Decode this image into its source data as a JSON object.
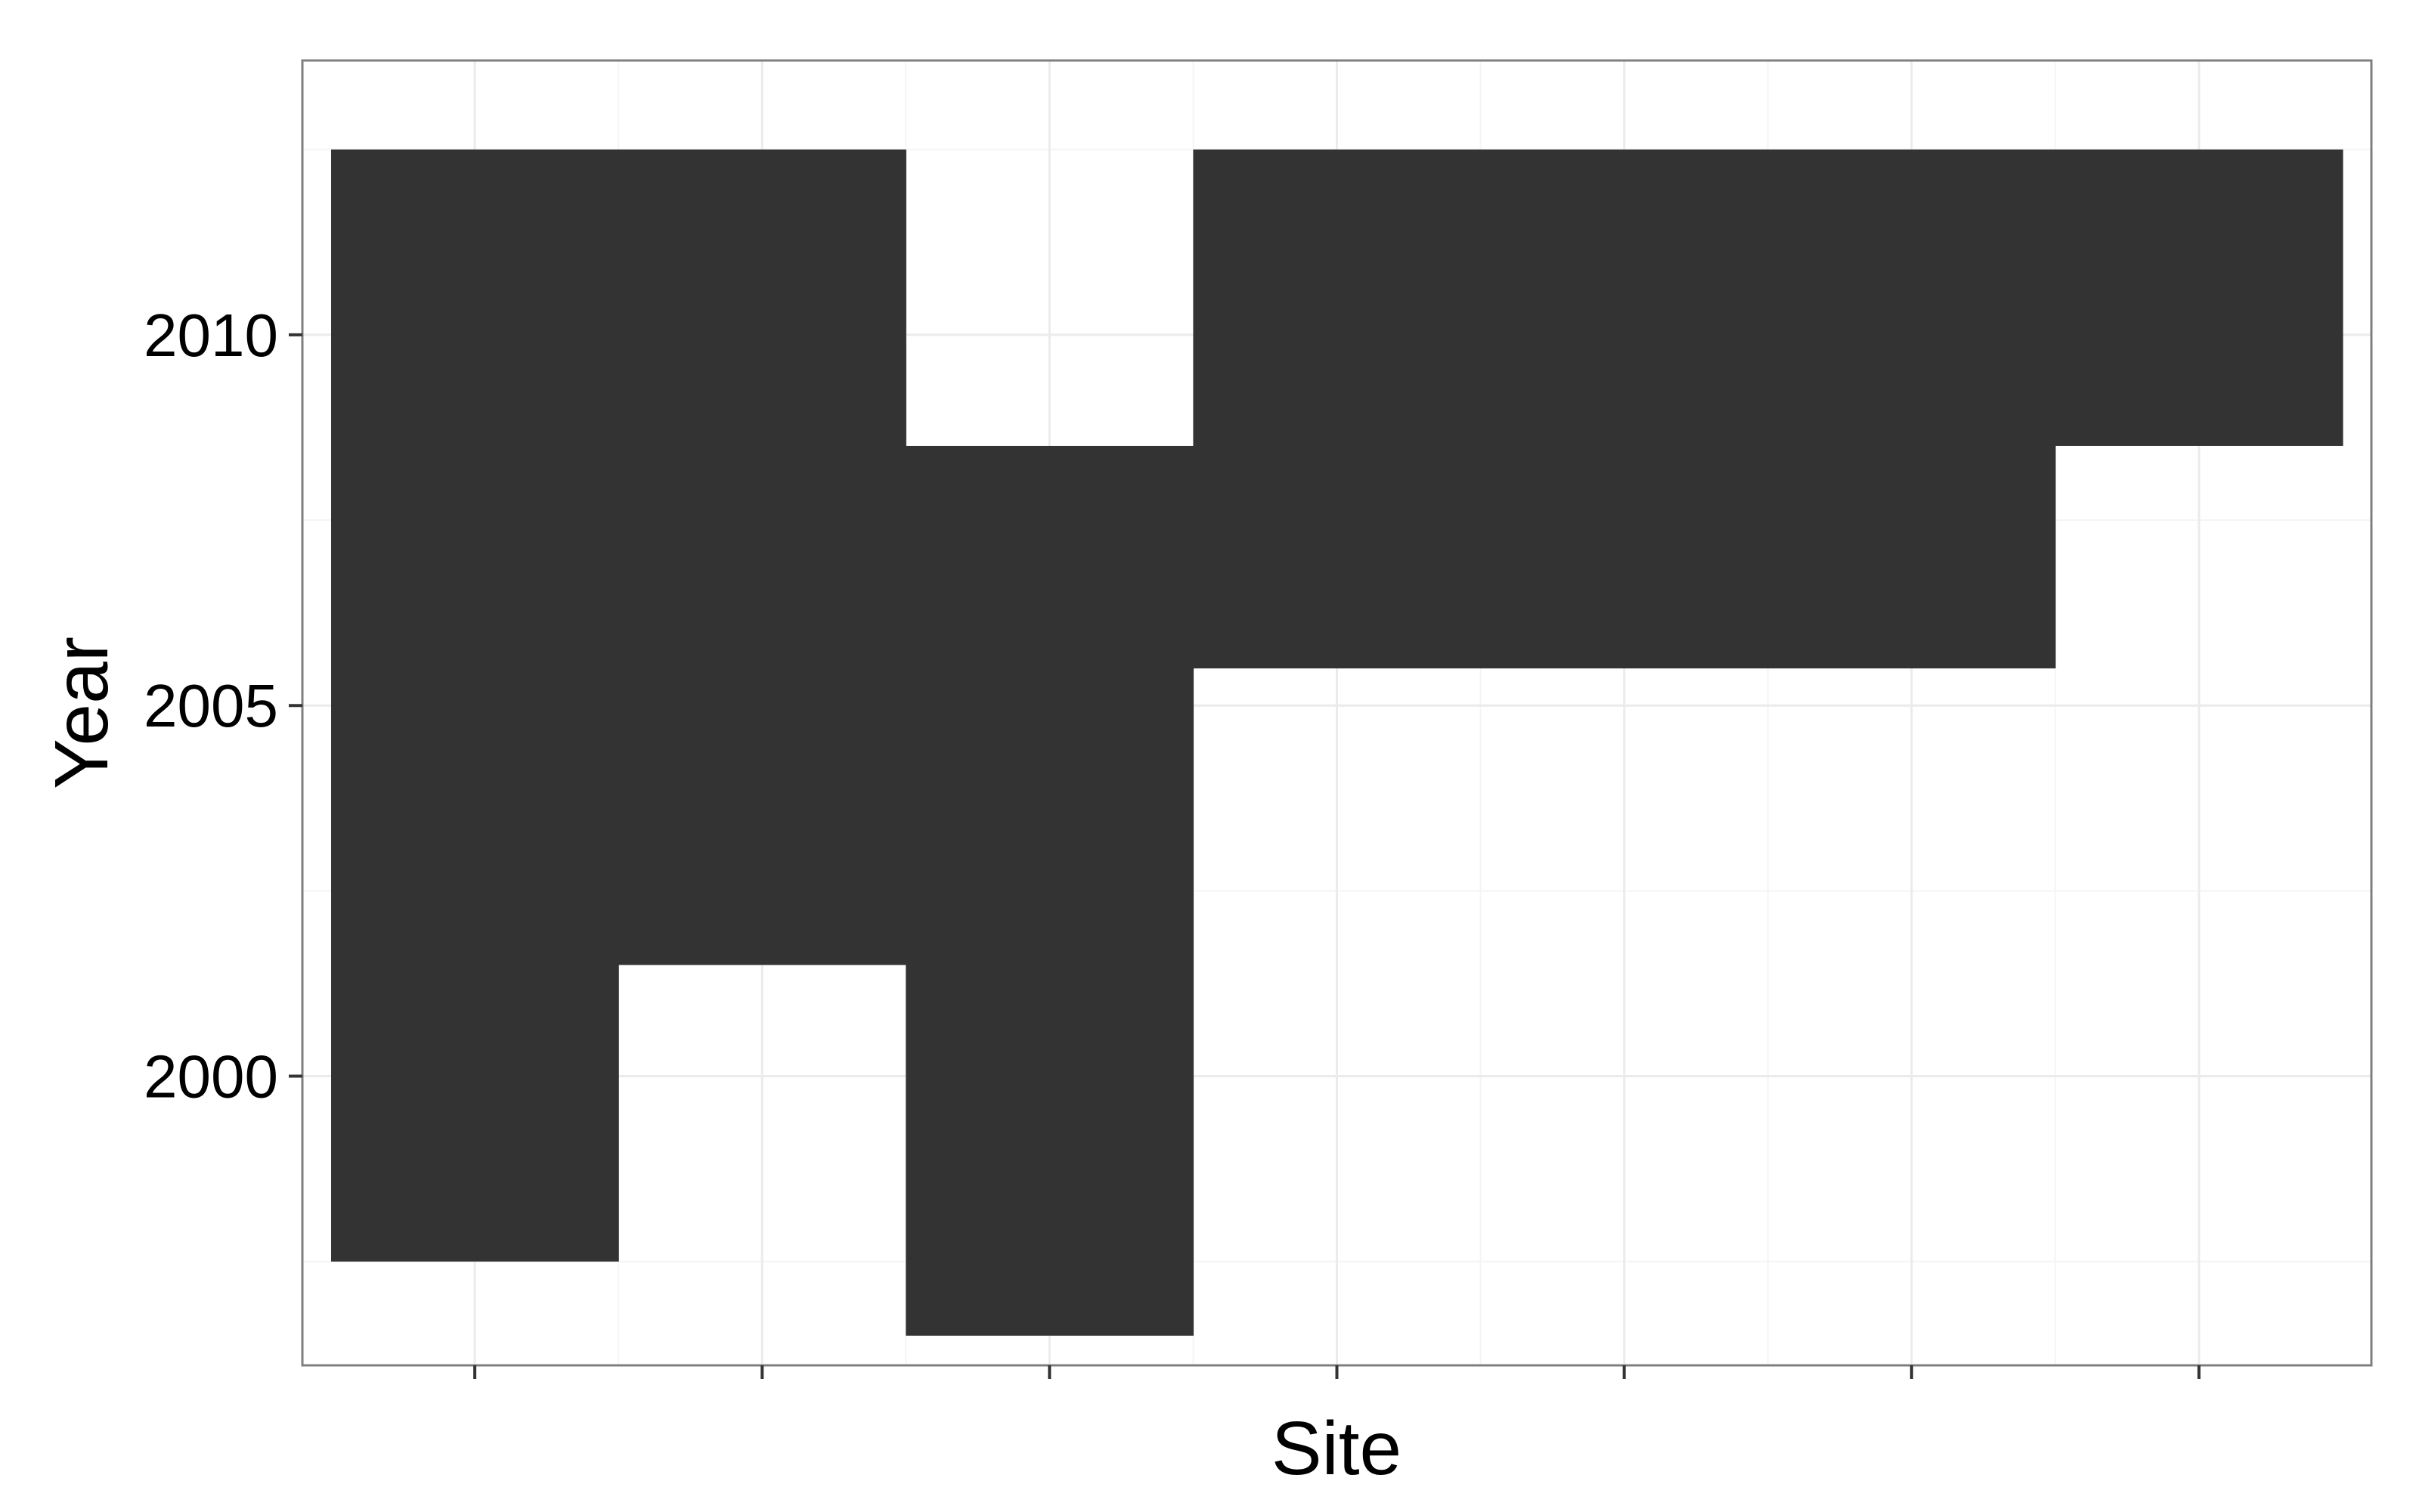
{
  "chart_data": {
    "type": "heatmap",
    "title": "",
    "xlabel": "Site",
    "ylabel": "Year",
    "x_tick_labels": [],
    "sites": [
      1,
      2,
      3,
      4,
      5,
      6,
      7
    ],
    "xlim": [
      0.4,
      7.6
    ],
    "ylim": [
      1996.1,
      2013.7
    ],
    "y_ticks": [
      2000,
      2005,
      2010
    ],
    "y_tick_labels": [
      "2000",
      "2005",
      "2010"
    ],
    "grid": true,
    "legend": "none",
    "tile_half_height": 0.5,
    "tile_half_width": 0.5,
    "tile_color": "#333333",
    "observations": [
      {
        "site": 1,
        "years": [
          1998,
          1999,
          2000,
          2001,
          2002,
          2003,
          2004,
          2005,
          2006,
          2007,
          2008,
          2009,
          2010,
          2011,
          2012
        ]
      },
      {
        "site": 2,
        "years": [
          2002,
          2003,
          2004,
          2005,
          2006,
          2007,
          2008,
          2009,
          2010,
          2011,
          2012
        ]
      },
      {
        "site": 3,
        "years": [
          1997,
          1998,
          1999,
          2000,
          2001,
          2002,
          2003,
          2004,
          2005,
          2006,
          2007,
          2008
        ]
      },
      {
        "site": 4,
        "years": [
          2006,
          2007,
          2008,
          2009,
          2010,
          2011,
          2012
        ]
      },
      {
        "site": 5,
        "years": [
          2006,
          2007,
          2008,
          2009,
          2010,
          2011,
          2012
        ]
      },
      {
        "site": 6,
        "years": [
          2006,
          2007,
          2008,
          2009,
          2010,
          2011,
          2012
        ]
      },
      {
        "site": 7,
        "years": [
          2009,
          2010,
          2011,
          2012
        ]
      }
    ]
  },
  "colors": {
    "background": "#ffffff",
    "panel_border": "#7f7f7f",
    "grid_major": "#ebebeb",
    "grid_minor": "#f5f5f5",
    "tile": "#333333",
    "text": "#000000"
  }
}
